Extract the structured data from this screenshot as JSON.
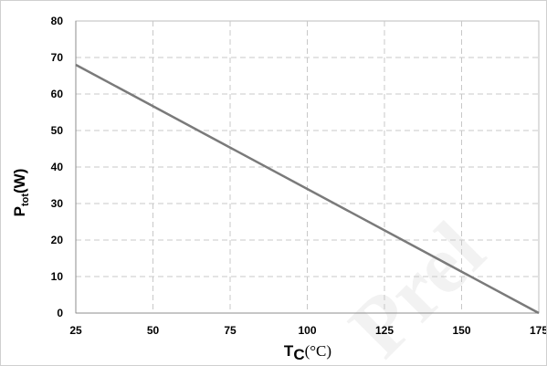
{
  "watermark": "Prel",
  "chart_data": {
    "type": "line",
    "title": "",
    "xlabel": {
      "main": "T",
      "sub": "C",
      "unit": "(°C)"
    },
    "ylabel": {
      "main": "P",
      "sub": "tot",
      "unit": "(W)"
    },
    "xlim": [
      25,
      175
    ],
    "ylim": [
      0,
      80
    ],
    "xticks": [
      25,
      50,
      75,
      100,
      125,
      150,
      175
    ],
    "yticks": [
      0,
      10,
      20,
      30,
      40,
      50,
      60,
      70,
      80
    ],
    "grid": true,
    "series": [
      {
        "x": [
          25,
          175
        ],
        "y": [
          68,
          0
        ],
        "color": "#7a7a7a"
      }
    ]
  }
}
